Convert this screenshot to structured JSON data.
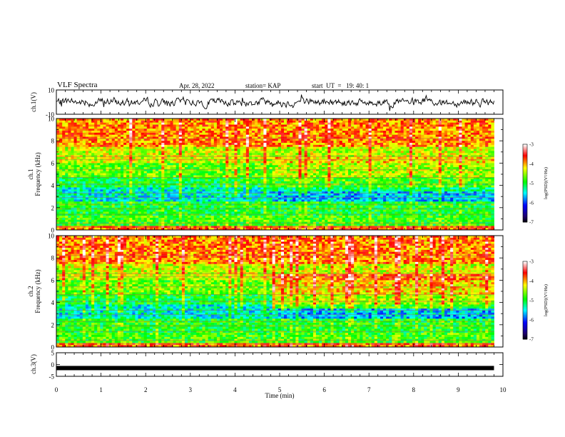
{
  "header": {
    "title": "VLF Spectra",
    "date": "Apr. 28, 2022",
    "station": "station= KAP",
    "start": "start  UT  =   19: 40: 1"
  },
  "colors": {
    "colormap": [
      "#000000",
      "#1a0060",
      "#0000ff",
      "#00ffff",
      "#00ff00",
      "#ffff00",
      "#ff0000",
      "#ffffff"
    ],
    "trace": "#000000"
  },
  "chart_data": [
    {
      "type": "line",
      "panel": "ch1-waveform",
      "ylabel": "ch.1(V)",
      "ylim": [
        -10,
        10
      ],
      "yticks": [
        "10",
        "-10"
      ],
      "xlim": [
        0,
        10
      ],
      "note_series": "noisy waveform spanning 0-9.8 min, amplitude roughly -5 to 5 V"
    },
    {
      "type": "heatmap",
      "panel": "ch1-spectrogram",
      "ylabel": "ch.1\nFrequency (kHz)",
      "ylim": [
        0,
        10
      ],
      "yticks": [
        "0",
        "2",
        "4",
        "6",
        "8",
        "10"
      ],
      "xlim": [
        0,
        10
      ],
      "data_end_min": 9.8,
      "transition_min": 4.85,
      "colorbar": {
        "label": "log(PSD)(V²/Hz)",
        "range": [
          -7,
          -3
        ],
        "ticks": [
          "-3",
          "-4",
          "-5",
          "-6",
          "-7"
        ]
      }
    },
    {
      "type": "heatmap",
      "panel": "ch2-spectrogram",
      "ylabel": "ch.2\nFrequency (kHz)",
      "ylim": [
        0,
        10
      ],
      "yticks": [
        "0",
        "2",
        "4",
        "6",
        "8",
        "10"
      ],
      "xlim": [
        0,
        10
      ],
      "data_end_min": 9.8,
      "transition_min": 4.85,
      "colorbar": {
        "label": "log(PSD)(V²/Hz)",
        "range": [
          -7,
          -3
        ],
        "ticks": [
          "-3",
          "-4",
          "-5",
          "-6",
          "-7"
        ]
      }
    },
    {
      "type": "line",
      "panel": "ch3-waveform",
      "ylabel": "ch.3(V)",
      "ylim": [
        -5,
        5
      ],
      "yticks": [
        "5",
        "0",
        "-5"
      ],
      "xlim": [
        0,
        10
      ],
      "xlabel": "Time (min)",
      "xticks": [
        "0",
        "1",
        "2",
        "3",
        "4",
        "5",
        "6",
        "7",
        "8",
        "9",
        "10"
      ],
      "level": -1.5
    }
  ]
}
